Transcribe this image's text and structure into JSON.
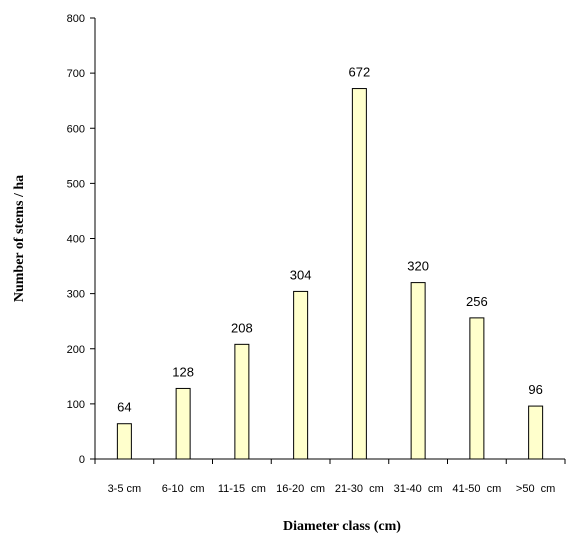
{
  "chart_data": {
    "type": "bar",
    "categories": [
      "3-5 cm",
      "6-10  cm",
      "11-15  cm",
      "16-20  cm",
      "21-30  cm",
      "31-40  cm",
      "41-50  cm",
      ">50  cm"
    ],
    "values": [
      64,
      128,
      208,
      304,
      672,
      320,
      256,
      96
    ],
    "data_labels": [
      "64",
      "128",
      "208",
      "304",
      "672",
      "320",
      "256",
      "96"
    ],
    "xlabel": "Diameter class  (cm)",
    "ylabel": "Number of stems / ha",
    "ylim": [
      0,
      800
    ],
    "yticks": [
      0,
      100,
      200,
      300,
      400,
      500,
      600,
      700,
      800
    ],
    "grid": false,
    "legend": "none",
    "bar_color": "#ffffcc",
    "bar_edge_color": "#000000"
  }
}
